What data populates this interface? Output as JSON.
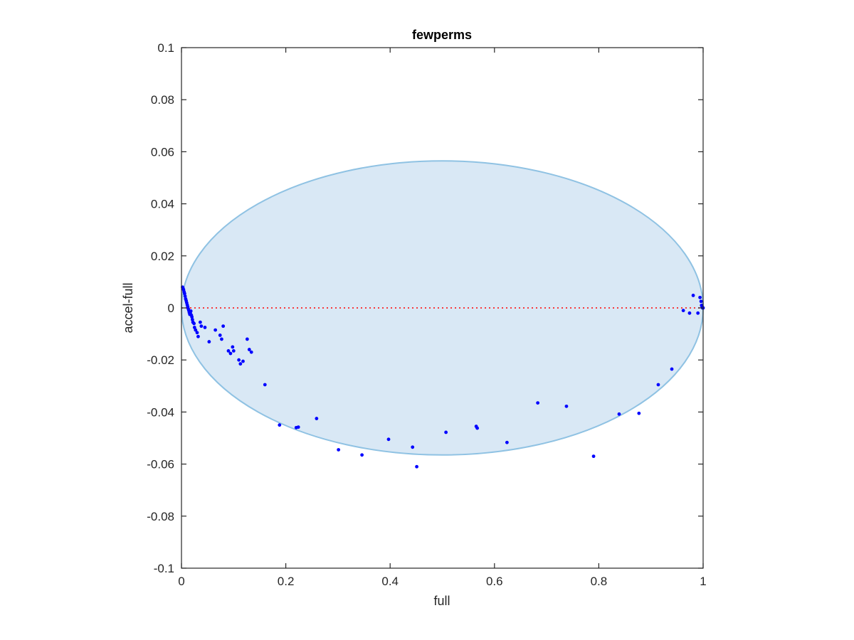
{
  "chart_data": {
    "type": "scatter",
    "title": "fewperms",
    "xlabel": "full",
    "ylabel": "accel-full",
    "xlim": [
      0,
      1
    ],
    "ylim": [
      -0.1,
      0.1
    ],
    "xticks": [
      "0",
      "0.2",
      "0.4",
      "0.6",
      "0.8",
      "1"
    ],
    "yticks": [
      "-0.1",
      "-0.08",
      "-0.06",
      "-0.04",
      "-0.02",
      "0",
      "0.02",
      "0.04",
      "0.06",
      "0.08",
      "0.1"
    ],
    "grid": false,
    "reference_line": {
      "y": 0,
      "style": "dotted",
      "color": "#ff0000"
    },
    "region": {
      "shape": "ellipse",
      "center": [
        0.5,
        0.0
      ],
      "radius_x": 0.5,
      "radius_y": 0.0565,
      "fill": "#d9e8f5",
      "stroke": "#8fc2e3"
    },
    "series": [
      {
        "color": "#0000ff",
        "marker": "dot",
        "points": [
          [
            0.002,
            0.008
          ],
          [
            0.003,
            0.0075
          ],
          [
            0.004,
            0.007
          ],
          [
            0.005,
            0.0062
          ],
          [
            0.006,
            0.0055
          ],
          [
            0.007,
            0.0045
          ],
          [
            0.008,
            0.0035
          ],
          [
            0.009,
            0.0028
          ],
          [
            0.01,
            0.002
          ],
          [
            0.011,
            0.0012
          ],
          [
            0.012,
            0.0005
          ],
          [
            0.013,
            -0.0003
          ],
          [
            0.014,
            -0.001
          ],
          [
            0.015,
            -0.0018
          ],
          [
            0.016,
            -0.0025
          ],
          [
            0.017,
            -0.002
          ],
          [
            0.018,
            -0.0012
          ],
          [
            0.019,
            -0.0028
          ],
          [
            0.02,
            -0.0035
          ],
          [
            0.021,
            -0.0045
          ],
          [
            0.022,
            -0.0055
          ],
          [
            0.024,
            -0.006
          ],
          [
            0.025,
            -0.0075
          ],
          [
            0.027,
            -0.0085
          ],
          [
            0.03,
            -0.0095
          ],
          [
            0.032,
            -0.011
          ],
          [
            0.036,
            -0.0055
          ],
          [
            0.038,
            -0.007
          ],
          [
            0.045,
            -0.0075
          ],
          [
            0.053,
            -0.013
          ],
          [
            0.065,
            -0.0085
          ],
          [
            0.074,
            -0.0105
          ],
          [
            0.077,
            -0.012
          ],
          [
            0.08,
            -0.007
          ],
          [
            0.09,
            -0.0165
          ],
          [
            0.094,
            -0.0175
          ],
          [
            0.098,
            -0.015
          ],
          [
            0.1,
            -0.0165
          ],
          [
            0.11,
            -0.02
          ],
          [
            0.113,
            -0.0215
          ],
          [
            0.118,
            -0.0205
          ],
          [
            0.126,
            -0.012
          ],
          [
            0.13,
            -0.016
          ],
          [
            0.134,
            -0.017
          ],
          [
            0.16,
            -0.0295
          ],
          [
            0.188,
            -0.045
          ],
          [
            0.22,
            -0.046
          ],
          [
            0.224,
            -0.0458
          ],
          [
            0.259,
            -0.0425
          ],
          [
            0.301,
            -0.0545
          ],
          [
            0.346,
            -0.0565
          ],
          [
            0.397,
            -0.0505
          ],
          [
            0.443,
            -0.0535
          ],
          [
            0.451,
            -0.061
          ],
          [
            0.507,
            -0.0478
          ],
          [
            0.565,
            -0.0455
          ],
          [
            0.567,
            -0.0462
          ],
          [
            0.624,
            -0.0517
          ],
          [
            0.683,
            -0.0365
          ],
          [
            0.738,
            -0.0378
          ],
          [
            0.79,
            -0.057
          ],
          [
            0.839,
            -0.0408
          ],
          [
            0.877,
            -0.0405
          ],
          [
            0.914,
            -0.0295
          ],
          [
            0.94,
            -0.0235
          ],
          [
            0.962,
            -0.001
          ],
          [
            0.974,
            -0.002
          ],
          [
            0.981,
            0.0048
          ],
          [
            0.99,
            -0.002
          ],
          [
            0.994,
            0.004
          ],
          [
            0.996,
            0.0025
          ],
          [
            0.997,
            0.001
          ],
          [
            0.998,
            0.0005
          ],
          [
            0.999,
            0.0
          ],
          [
            1.0,
            0.0
          ]
        ]
      }
    ]
  }
}
